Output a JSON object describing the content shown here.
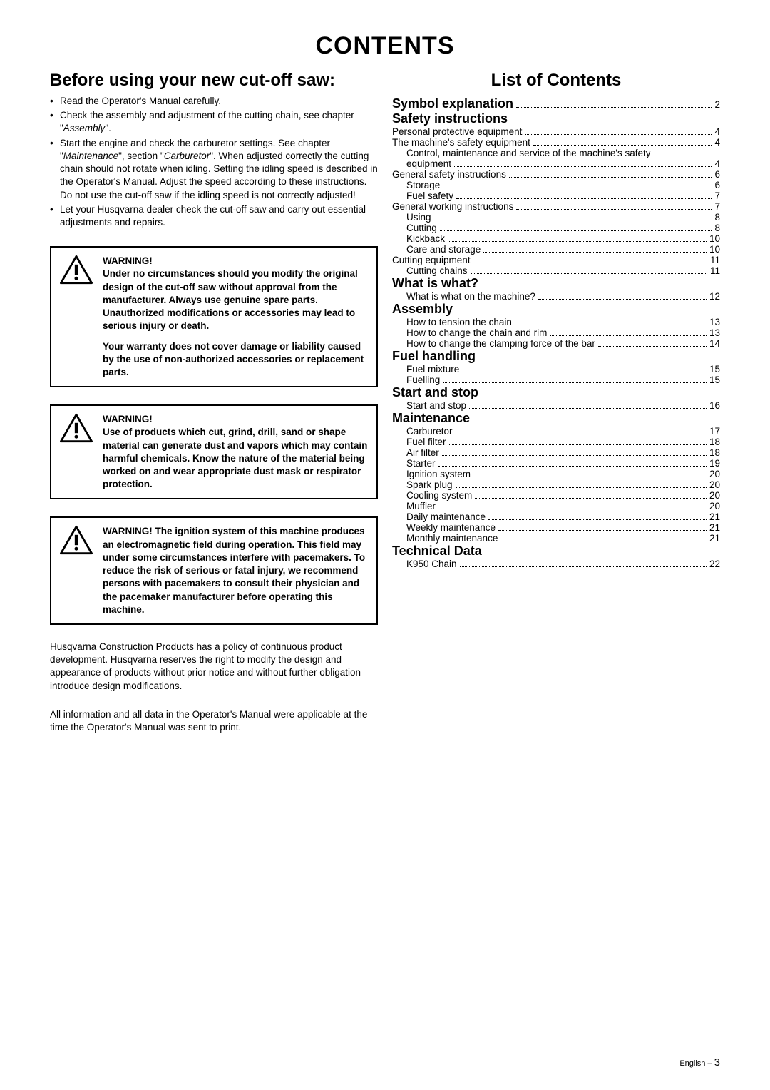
{
  "page_title": "CONTENTS",
  "left": {
    "heading": "Before using your new cut-off saw:",
    "bullets": [
      {
        "html": "Read the Operator's Manual carefully."
      },
      {
        "html": "Check the assembly and adjustment of the cutting chain, see chapter \"<i>Assembly</i>\"."
      },
      {
        "html": "Start the engine and check the carburetor settings. See chapter \"<i>Maintenance</i>\", section \"<i>Carburetor</i>\". When adjusted correctly the cutting chain should not rotate when idling. Setting the idling speed is described in the Operator's Manual. Adjust the speed according to these instructions. Do not use the cut-off saw if the idling speed is not correctly adjusted!"
      },
      {
        "html": "Let your Husqvarna dealer check the cut-off saw and carry out essential adjustments and repairs."
      }
    ],
    "warnings": [
      {
        "title": "WARNING!",
        "paras": [
          "Under no circumstances should you modify the original design of the cut-off saw without approval from the manufacturer. Always use genuine spare parts. Unauthorized modifications or accessories may lead to serious injury or death.",
          "Your warranty does not cover damage or liability caused by the use of non-authorized accessories or replacement parts."
        ]
      },
      {
        "title": "WARNING!",
        "paras": [
          "Use of products which cut, grind, drill, sand or shape material can generate dust and vapors which may contain harmful chemicals. Know the nature of the material being worked on and wear appropriate dust mask or respirator protection."
        ]
      },
      {
        "title_inline": "WARNING! ",
        "paras": [
          "The ignition system of this machine produces an electromagnetic field during operation. This field may under some circumstances interfere with pacemakers. To reduce the risk of serious or fatal injury, we recommend persons with pacemakers to consult their physician and the pacemaker manufacturer before operating this machine."
        ]
      }
    ],
    "body_paras": [
      "Husqvarna Construction Products has a policy of continuous product development. Husqvarna reserves the right to modify the design and appearance of products without prior notice and without further obligation introduce design modifications.",
      "All information and all data in the Operator's Manual were applicable at the time the Operator's Manual was sent to print."
    ]
  },
  "right": {
    "heading": "List of Contents",
    "entries": [
      {
        "type": "h1p",
        "label": "Symbol explanation",
        "page": "2"
      },
      {
        "type": "h1",
        "label": "Safety instructions"
      },
      {
        "type": "row",
        "label": "Personal protective equipment",
        "page": "4"
      },
      {
        "type": "row",
        "label": "The machine's safety equipment",
        "page": "4"
      },
      {
        "type": "multi",
        "line1": "Control, maintenance and service of the machine's safety",
        "line2": "equipment",
        "page": "4"
      },
      {
        "type": "row",
        "label": "General safety instructions",
        "page": "6"
      },
      {
        "type": "sub",
        "label": "Storage",
        "page": "6"
      },
      {
        "type": "sub",
        "label": "Fuel safety",
        "page": "7"
      },
      {
        "type": "row",
        "label": "General working instructions",
        "page": "7"
      },
      {
        "type": "sub",
        "label": "Using",
        "page": "8"
      },
      {
        "type": "sub",
        "label": "Cutting",
        "page": "8"
      },
      {
        "type": "sub",
        "label": "Kickback",
        "page": "10"
      },
      {
        "type": "sub",
        "label": "Care and storage",
        "page": "10"
      },
      {
        "type": "row",
        "label": "Cutting equipment",
        "page": "11"
      },
      {
        "type": "sub",
        "label": "Cutting chains",
        "page": "11"
      },
      {
        "type": "h1",
        "label": "What is what?"
      },
      {
        "type": "sub",
        "label": "What is what on the machine?",
        "page": "12"
      },
      {
        "type": "h1",
        "label": "Assembly"
      },
      {
        "type": "sub",
        "label": "How to tension the chain",
        "page": "13"
      },
      {
        "type": "sub",
        "label": "How to change the chain and rim",
        "page": "13"
      },
      {
        "type": "sub",
        "label": "How to change the clamping force of the bar",
        "page": "14"
      },
      {
        "type": "h1",
        "label": "Fuel handling"
      },
      {
        "type": "sub",
        "label": "Fuel mixture",
        "page": "15"
      },
      {
        "type": "sub",
        "label": "Fuelling",
        "page": "15"
      },
      {
        "type": "h1",
        "label": "Start and stop"
      },
      {
        "type": "sub",
        "label": "Start and stop",
        "page": "16"
      },
      {
        "type": "h1",
        "label": "Maintenance"
      },
      {
        "type": "sub",
        "label": "Carburetor",
        "page": "17"
      },
      {
        "type": "sub",
        "label": "Fuel filter",
        "page": "18"
      },
      {
        "type": "sub",
        "label": "Air filter",
        "page": "18"
      },
      {
        "type": "sub",
        "label": "Starter",
        "page": "19"
      },
      {
        "type": "sub",
        "label": "Ignition system",
        "page": "20"
      },
      {
        "type": "sub",
        "label": "Spark plug",
        "page": "20"
      },
      {
        "type": "sub",
        "label": "Cooling system",
        "page": "20"
      },
      {
        "type": "sub",
        "label": "Muffler",
        "page": "20"
      },
      {
        "type": "sub",
        "label": "Daily maintenance",
        "page": "21"
      },
      {
        "type": "sub",
        "label": "Weekly maintenance",
        "page": "21"
      },
      {
        "type": "sub",
        "label": "Monthly maintenance",
        "page": "21"
      },
      {
        "type": "h1",
        "label": "Technical Data"
      },
      {
        "type": "sub",
        "label": "K950 Chain",
        "page": "22"
      }
    ]
  },
  "footer": {
    "lang": "English",
    "sep": " – ",
    "page": "3"
  }
}
